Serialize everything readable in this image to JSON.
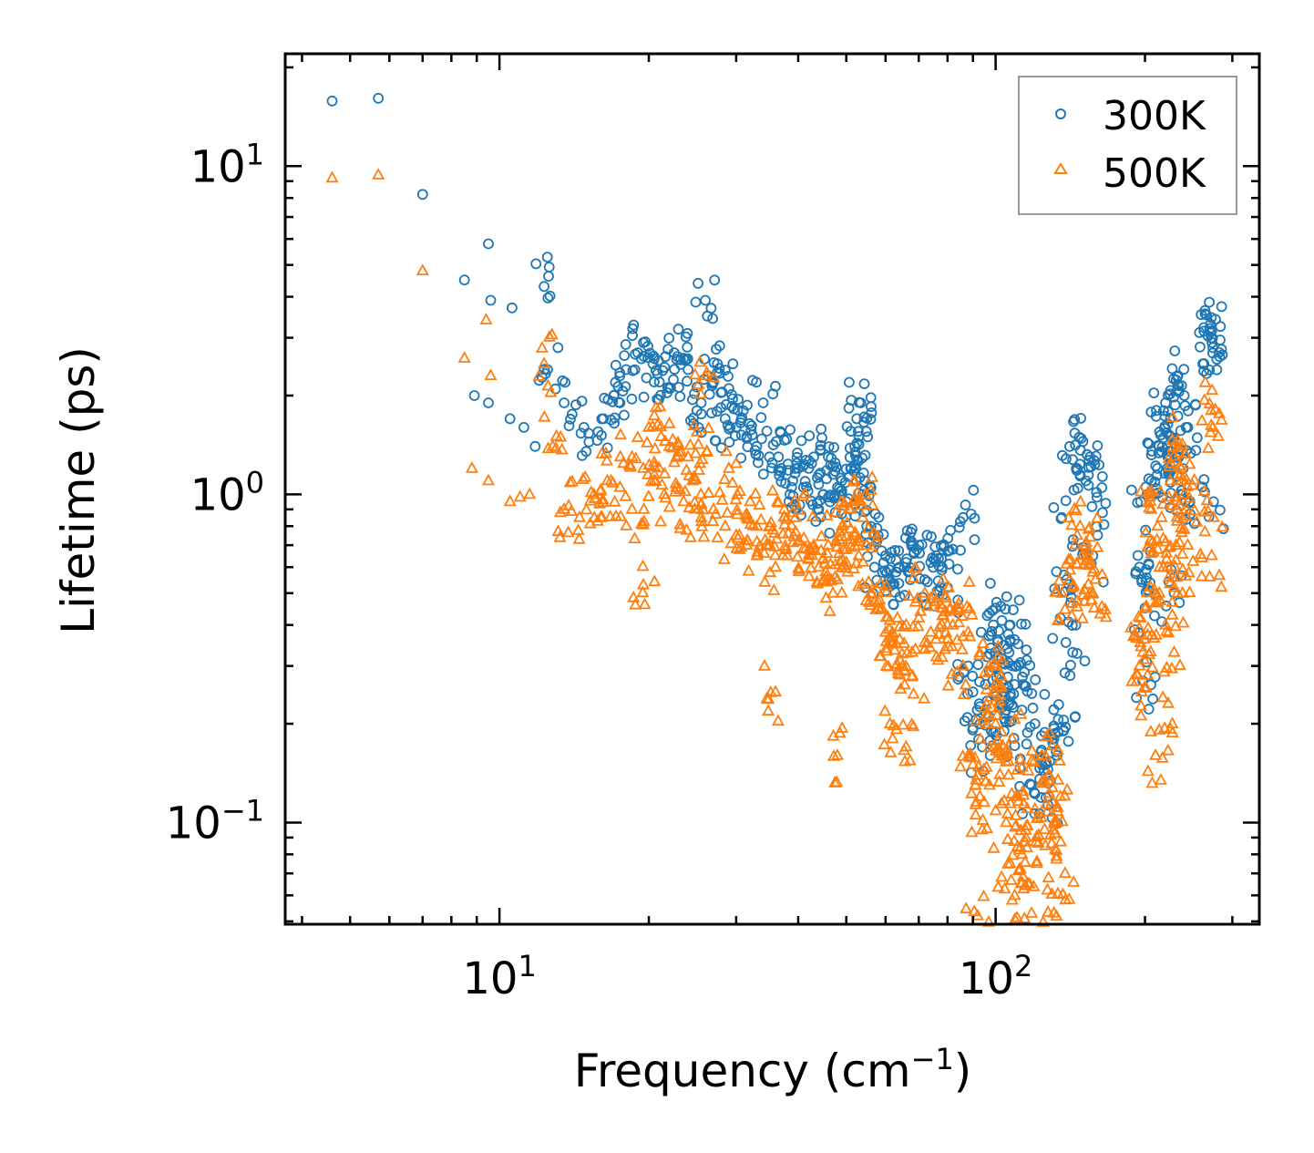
{
  "chart_data": {
    "type": "scatter",
    "title": "",
    "xlabel": "Frequency (cm",
    "xlabel_sup": "−1",
    "xlabel_end": ")",
    "ylabel": "Lifetime (ps)",
    "xscale": "log",
    "yscale": "log",
    "xlim": [
      3.7,
      340
    ],
    "ylim": [
      0.049,
      22
    ],
    "x_ticks": [
      {
        "value": 10,
        "base": "10",
        "exp": "1"
      },
      {
        "value": 100,
        "base": "10",
        "exp": "2"
      }
    ],
    "y_ticks": [
      {
        "value": 0.1,
        "base": "10",
        "exp": "−1"
      },
      {
        "value": 1,
        "base": "10",
        "exp": "0"
      },
      {
        "value": 10,
        "base": "10",
        "exp": "1"
      }
    ],
    "legend_position": "top-right",
    "series": [
      {
        "name": "300K",
        "marker": "circle",
        "color": "#1f77b4",
        "x": [
          4.6,
          5.7,
          7.0,
          8.5,
          9.5,
          9.6,
          10.6,
          12.3,
          26.0,
          8.9,
          9.5,
          10.5,
          11.2,
          11.8,
          12.5,
          13.5,
          14.8,
          16.2,
          17.5,
          19.0,
          20.5,
          22.0,
          23.5,
          25.0,
          27.0,
          28.5,
          30.0,
          31.5,
          33.0,
          35.0,
          37.0,
          39.0,
          41.0,
          43.0,
          45.0,
          47.0,
          49.0,
          51.0,
          53.0,
          55.0,
          57.0,
          60.0,
          63.0,
          66.0,
          70.0,
          74.0,
          78.0,
          82.0,
          86.0,
          90.0,
          93.0,
          96.0,
          99.0,
          102.0,
          105.0,
          108.0,
          111.0,
          115.0,
          120.0,
          126.0,
          131.0,
          136.0,
          141.0,
          146.0,
          152.0,
          157.0,
          195.0,
          200.0,
          206.0,
          212.0,
          218.0,
          225.0,
          231.0,
          236.0,
          242.0,
          272.0
        ],
        "y": [
          15.8,
          16.1,
          8.2,
          4.5,
          5.8,
          3.9,
          3.7,
          4.3,
          3.9,
          2.0,
          1.9,
          1.7,
          1.6,
          1.4,
          2.4,
          1.9,
          1.6,
          1.7,
          1.9,
          2.7,
          2.2,
          2.1,
          2.6,
          1.8,
          2.2,
          1.7,
          1.6,
          1.5,
          1.4,
          1.3,
          1.2,
          1.1,
          1.05,
          1.3,
          1.0,
          1.15,
          1.0,
          1.2,
          1.5,
          0.8,
          0.6,
          0.65,
          0.58,
          0.62,
          0.7,
          0.62,
          0.6,
          0.68,
          0.85,
          0.25,
          0.2,
          0.32,
          0.4,
          0.28,
          0.22,
          0.3,
          0.35,
          0.26,
          0.2,
          0.15,
          0.18,
          0.85,
          1.4,
          1.2,
          1.1,
          0.65,
          0.6,
          0.45,
          1.1,
          1.2,
          1.8,
          1.5,
          1.3,
          1.0,
          1.6,
          3.0
        ],
        "x_extra": [
          17.0,
          18.0,
          19.5,
          21.0,
          22.5,
          24.0,
          25.5,
          27.5,
          29.0,
          31.0,
          34.0,
          36.5,
          38.5,
          42.0,
          44.0,
          46.0,
          48.0,
          50.0,
          52.0,
          54.0,
          52.5,
          53.5,
          54.5,
          58.0,
          61.0,
          64.0,
          68.0,
          72.0,
          76.0,
          80.0,
          88.0,
          94.0,
          97.0,
          100.0,
          101.0,
          103.0,
          104.0,
          107.0,
          110.0,
          113.0,
          118.0,
          124.0,
          128.0,
          133.0,
          135.0,
          137.0,
          139.0,
          143.0,
          150.0,
          155.0,
          160.0,
          196.0,
          197.0,
          198.0,
          214.0,
          216.0,
          220.0,
          222.0,
          229.0,
          233.0,
          238.0,
          240.0,
          244.0,
          270.0,
          274.0,
          275.0,
          271.0,
          273.0
        ],
        "y_extra": [
          2.0,
          2.4,
          2.9,
          2.2,
          2.7,
          2.4,
          1.9,
          2.5,
          2.1,
          1.8,
          1.9,
          1.3,
          1.0,
          1.2,
          0.9,
          1.3,
          1.05,
          0.95,
          1.4,
          1.0,
          1.7,
          1.9,
          1.1,
          0.75,
          0.55,
          0.6,
          0.7,
          0.55,
          0.65,
          0.52,
          0.3,
          0.17,
          0.21,
          0.45,
          0.36,
          0.25,
          0.19,
          0.4,
          0.3,
          0.22,
          0.13,
          0.15,
          0.12,
          0.16,
          0.42,
          0.19,
          0.55,
          0.33,
          1.45,
          1.3,
          0.98,
          0.95,
          0.55,
          0.27,
          1.55,
          1.35,
          1.9,
          1.2,
          0.5,
          2.3,
          1.0,
          2.0,
          1.6,
          3.2,
          2.8,
          0.95,
          3.3,
          2.9
        ]
      },
      {
        "name": "500K",
        "marker": "triangle",
        "color": "#ff7f0e",
        "x": [
          4.6,
          5.7,
          7.0,
          8.5,
          9.4,
          9.6,
          8.8,
          9.5,
          10.5,
          11.0,
          11.5,
          12.3,
          12.8,
          13.5,
          14.5,
          15.5,
          16.5,
          17.5,
          18.5,
          19.5,
          20.5,
          21.5,
          22.5,
          23.5,
          24.5,
          25.5,
          26.0,
          27.0,
          28.5,
          30.0,
          31.5,
          33.0,
          34.5,
          36.0,
          38.0,
          40.0,
          42.0,
          44.0,
          46.0,
          48.0,
          50.0,
          52.0,
          54.0,
          56.0,
          58.0,
          60.0,
          63.0,
          66.0,
          70.0,
          74.0,
          78.0,
          82.0,
          86.0,
          90.0,
          93.0,
          96.0,
          99.0,
          102.0,
          105.0,
          108.0,
          111.0,
          115.0,
          120.0,
          126.0,
          131.0,
          136.0,
          141.0,
          146.0,
          152.0,
          157.0,
          195.0,
          200.0,
          206.0,
          212.0,
          218.0,
          225.0,
          231.0,
          236.0,
          242.0,
          272.0
        ],
        "y": [
          9.2,
          9.4,
          4.8,
          2.6,
          3.4,
          2.3,
          1.2,
          1.1,
          0.95,
          0.98,
          1.0,
          2.5,
          1.4,
          0.9,
          0.85,
          1.0,
          1.1,
          1.05,
          1.3,
          1.2,
          1.15,
          1.0,
          1.25,
          0.95,
          1.1,
          0.85,
          2.3,
          0.9,
          0.8,
          0.75,
          0.7,
          0.65,
          0.7,
          0.6,
          0.65,
          0.72,
          0.68,
          0.6,
          0.7,
          0.55,
          0.62,
          0.75,
          0.85,
          0.5,
          0.45,
          0.38,
          0.35,
          0.4,
          0.42,
          0.38,
          0.45,
          0.4,
          0.3,
          0.15,
          0.12,
          0.2,
          0.25,
          0.14,
          0.1,
          0.18,
          0.12,
          0.09,
          0.11,
          0.085,
          0.095,
          0.5,
          0.55,
          0.75,
          0.7,
          0.5,
          0.3,
          0.45,
          0.9,
          0.8,
          0.6,
          1.1,
          0.7,
          1.2,
          0.9,
          1.8
        ],
        "x_extra": [
          16.0,
          18.5,
          20.0,
          22.0,
          24.0,
          25.0,
          29.0,
          32.0,
          35.0,
          37.5,
          39.5,
          43.0,
          45.0,
          47.0,
          49.0,
          51.0,
          53.0,
          53.5,
          55.0,
          59.0,
          62.0,
          65.0,
          68.0,
          72.0,
          76.0,
          80.0,
          84.0,
          88.0,
          91.0,
          94.0,
          97.0,
          100.0,
          101.0,
          104.0,
          107.0,
          110.0,
          113.0,
          117.0,
          121.0,
          124.0,
          128.0,
          133.0,
          135.0,
          138.0,
          143.0,
          148.0,
          153.0,
          158.0,
          196.0,
          197.0,
          198.0,
          214.0,
          216.0,
          220.0,
          222.0,
          229.0,
          233.0,
          238.0,
          240.0,
          244.0,
          270.0,
          274.0,
          275.0,
          19.5,
          36.0,
          48.0,
          62.0,
          66.0,
          92.0,
          108.0,
          131.0,
          210.0,
          227.0
        ],
        "y_extra": [
          0.85,
          0.9,
          1.6,
          1.4,
          1.3,
          1.55,
          1.2,
          0.95,
          0.8,
          0.9,
          0.85,
          0.7,
          0.55,
          0.5,
          0.8,
          0.9,
          0.65,
          0.95,
          0.7,
          0.45,
          0.35,
          0.3,
          0.28,
          0.5,
          0.32,
          0.4,
          0.45,
          0.38,
          0.13,
          0.095,
          0.3,
          0.2,
          0.26,
          0.16,
          0.075,
          0.12,
          0.08,
          0.065,
          0.075,
          0.16,
          0.14,
          0.1,
          0.12,
          0.07,
          0.52,
          0.8,
          0.65,
          0.45,
          0.42,
          0.25,
          0.33,
          0.6,
          0.85,
          0.4,
          0.6,
          0.33,
          1.4,
          0.5,
          1.0,
          0.7,
          0.56,
          1.6,
          0.85,
          0.53,
          0.25,
          0.16,
          0.18,
          0.17,
          0.052,
          0.058,
          0.053,
          0.16,
          0.2
        ]
      }
    ]
  }
}
